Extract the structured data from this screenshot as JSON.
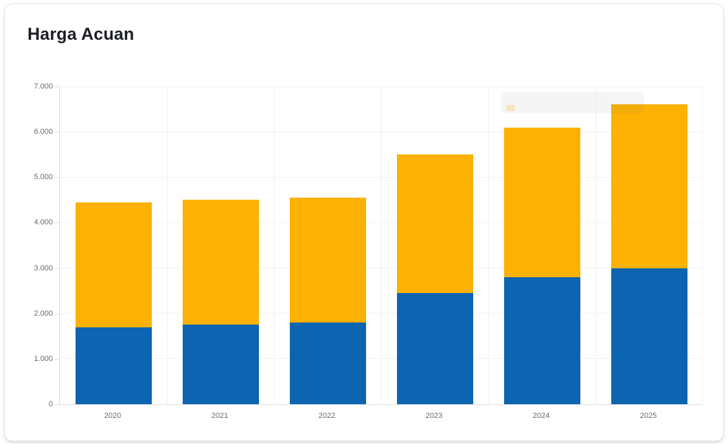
{
  "card": {
    "title": "Harga Acuan"
  },
  "chart_data": {
    "type": "bar",
    "stacked": true,
    "title": "Harga Acuan",
    "categories": [
      "2020",
      "2021",
      "2022",
      "2023",
      "2024",
      "2025"
    ],
    "series": [
      {
        "name": "series-blue-bottom",
        "color": "#0d64b0",
        "values": [
          1700,
          1750,
          1800,
          2450,
          2800,
          3000
        ]
      },
      {
        "name": "series-orange-top",
        "color": "#fcb103",
        "values": [
          2750,
          2750,
          2750,
          3050,
          3300,
          3600
        ]
      }
    ],
    "stacked_totals": [
      4450,
      4500,
      4550,
      5500,
      6100,
      6600
    ],
    "xlabel": "",
    "ylabel": "",
    "ylim": [
      0,
      7000
    ],
    "ytick_step": 1000,
    "ytick_labels": [
      "0",
      "1.000",
      "2.000",
      "3.000",
      "4.000",
      "5.000",
      "6.000",
      "7.000"
    ],
    "grid": true,
    "legend": "none",
    "tooltip": {
      "visible": true,
      "faded": true,
      "swatch_color": "#fcb103"
    }
  },
  "colors": {
    "bar_blue": "#0d64b0",
    "bar_orange": "#fcb103",
    "axis_line": "#dcdcdc",
    "gridline": "#f2f2f2",
    "tick_text": "#6a6a6a",
    "title_text": "#1b1e23",
    "card_border": "#e4e4e4"
  }
}
